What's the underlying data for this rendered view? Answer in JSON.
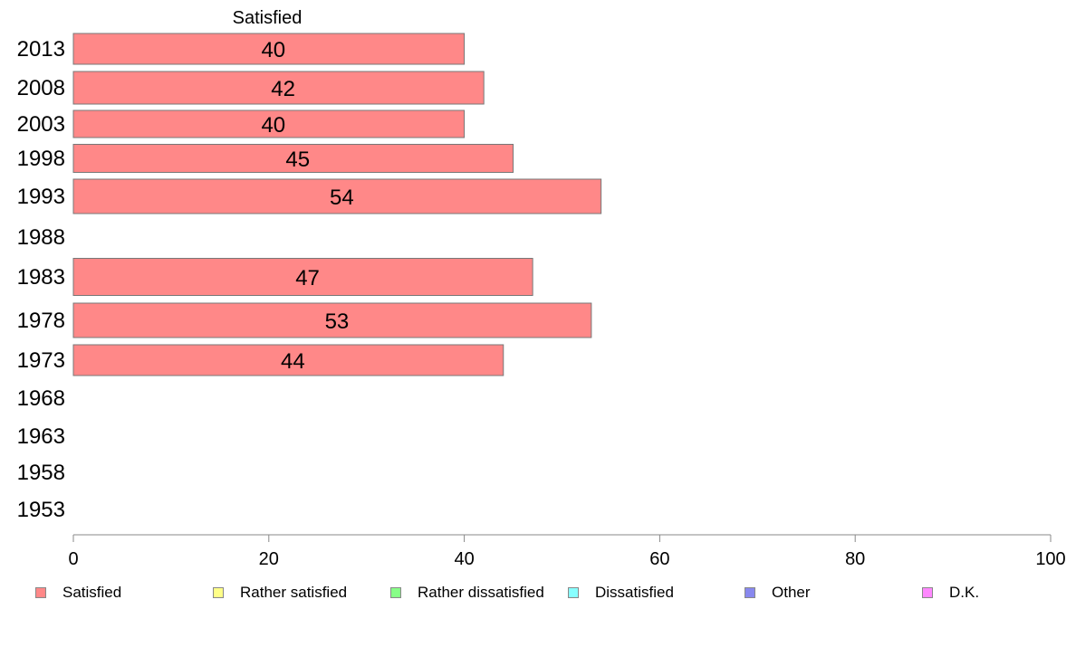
{
  "chart_data": {
    "type": "bar",
    "orientation": "horizontal",
    "categories": [
      "2013",
      "2008",
      "2003",
      "1998",
      "1993",
      "1988",
      "1983",
      "1978",
      "1973",
      "1968",
      "1963",
      "1958",
      "1953"
    ],
    "series": [
      {
        "name": "Satisfied",
        "color": "#ff8888",
        "values": [
          40,
          42,
          40,
          45,
          54,
          null,
          47,
          53,
          44,
          null,
          null,
          null,
          null
        ]
      }
    ],
    "column_header": "Satisfied",
    "xlim": [
      0,
      100
    ],
    "xticks": [
      0,
      20,
      40,
      60,
      80,
      100
    ],
    "legend": [
      {
        "label": "Satisfied",
        "color": "#ff8888"
      },
      {
        "label": "Rather satisfied",
        "color": "#ffff88"
      },
      {
        "label": "Rather dissatisfied",
        "color": "#88ff88"
      },
      {
        "label": "Dissatisfied",
        "color": "#88ffff"
      },
      {
        "label": "Other",
        "color": "#8888ee"
      },
      {
        "label": "D.K.",
        "color": "#ff88ff"
      }
    ],
    "legend_position": "bottom",
    "grid": false
  }
}
